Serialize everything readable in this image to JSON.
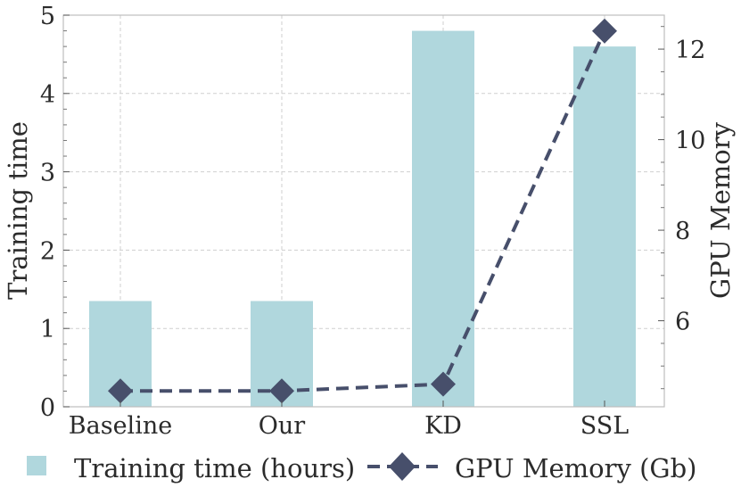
{
  "chart_data": {
    "type": "bar+line",
    "categories": [
      "Baseline",
      "Our",
      "KD",
      "SSL"
    ],
    "series": [
      {
        "name": "Training time (hours)",
        "type": "bar",
        "axis": "left",
        "values": [
          1.35,
          1.35,
          4.8,
          4.6
        ],
        "color": "#b0d7dd"
      },
      {
        "name": "GPU Memory (Gb)",
        "type": "line",
        "axis": "right",
        "values": [
          4.45,
          4.45,
          4.6,
          12.4
        ],
        "color": "#474f6b",
        "line_style": "dashed",
        "marker": "diamond"
      }
    ],
    "ylabel": "Training time",
    "y2label": "GPU Memory",
    "ylim": [
      0,
      5
    ],
    "y2lim": [
      4.1,
      12.75
    ],
    "yticks": [
      "0",
      "1",
      "2",
      "3",
      "4",
      "5"
    ],
    "y2ticks": [
      "6",
      "8",
      "10",
      "12"
    ],
    "grid": true,
    "legend": "bottom"
  }
}
